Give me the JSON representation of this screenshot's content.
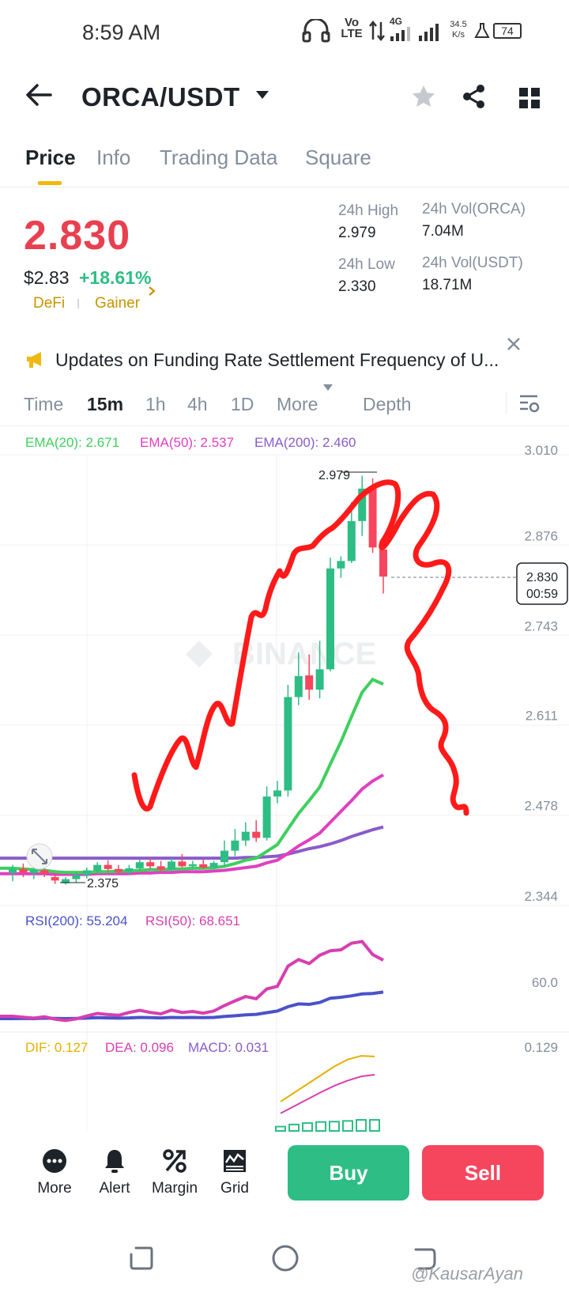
{
  "status_bar": {
    "time": "8:59 AM",
    "network": "Vo LTE",
    "net_type": "4G",
    "speed": "34.5",
    "speed_unit": "K/s",
    "battery": "74"
  },
  "header": {
    "pair": "ORCA/USDT"
  },
  "tabs": [
    {
      "label": "Price"
    },
    {
      "label": "Info"
    },
    {
      "label": "Trading Data"
    },
    {
      "label": "Square"
    }
  ],
  "price": {
    "last": "2.830",
    "usd": "$2.83",
    "change": "+18.61%",
    "tags": [
      "DeFi",
      "Gainer"
    ],
    "high_label": "24h High",
    "high_value": "2.979",
    "low_label": "24h Low",
    "low_value": "2.330",
    "vol_base_label": "24h Vol(ORCA)",
    "vol_base_value": "7.04M",
    "vol_quote_label": "24h Vol(USDT)",
    "vol_quote_value": "18.71M"
  },
  "announcement": {
    "text": "Updates on Funding Rate Settlement Frequency of U..."
  },
  "intervals": {
    "items": [
      "Time",
      "15m",
      "1h",
      "4h",
      "1D"
    ],
    "more": "More",
    "depth": "Depth"
  },
  "chart": {
    "ema20": "EMA(20): 2.671",
    "ema50": "EMA(50): 2.537",
    "ema200": "EMA(200): 2.460",
    "y_ticks": [
      "3.010",
      "2.876",
      "2.743",
      "2.611",
      "2.478",
      "2.344"
    ],
    "max_label": "2.979",
    "min_label": "2.375",
    "current_price": "2.830",
    "countdown": "00:59",
    "watermark": "BINANCE",
    "rsi200": "RSI(200): 55.204",
    "rsi50": "RSI(50): 68.651",
    "rsi_tick": "60.0",
    "dif": "DIF: 0.127",
    "dea": "DEA: 0.096",
    "macd": "MACD: 0.031",
    "macd_tick": "0.129",
    "colors": {
      "up": "#2ebd85",
      "down": "#f6465d",
      "ema20": "#3fcf5f",
      "ema50": "#e040c0",
      "ema200": "#8a5cc8"
    }
  },
  "chart_data": {
    "type": "candlestick",
    "ylim": [
      2.344,
      3.01
    ],
    "y_ticks": [
      3.01,
      2.876,
      2.743,
      2.611,
      2.478,
      2.344
    ],
    "candles": [
      {
        "o": 2.392,
        "h": 2.404,
        "l": 2.38,
        "c": 2.398
      },
      {
        "o": 2.398,
        "h": 2.406,
        "l": 2.386,
        "c": 2.393
      },
      {
        "o": 2.392,
        "h": 2.399,
        "l": 2.383,
        "c": 2.396
      },
      {
        "o": 2.396,
        "h": 2.404,
        "l": 2.386,
        "c": 2.391
      },
      {
        "o": 2.386,
        "h": 2.392,
        "l": 2.376,
        "c": 2.381
      },
      {
        "o": 2.377,
        "h": 2.386,
        "l": 2.375,
        "c": 2.383
      },
      {
        "o": 2.383,
        "h": 2.393,
        "l": 2.378,
        "c": 2.389
      },
      {
        "o": 2.389,
        "h": 2.4,
        "l": 2.384,
        "c": 2.396
      },
      {
        "o": 2.396,
        "h": 2.408,
        "l": 2.392,
        "c": 2.404
      },
      {
        "o": 2.404,
        "h": 2.411,
        "l": 2.394,
        "c": 2.398
      },
      {
        "o": 2.398,
        "h": 2.404,
        "l": 2.389,
        "c": 2.394
      },
      {
        "o": 2.394,
        "h": 2.404,
        "l": 2.389,
        "c": 2.399
      },
      {
        "o": 2.399,
        "h": 2.412,
        "l": 2.396,
        "c": 2.408
      },
      {
        "o": 2.408,
        "h": 2.415,
        "l": 2.398,
        "c": 2.402
      },
      {
        "o": 2.402,
        "h": 2.41,
        "l": 2.394,
        "c": 2.397
      },
      {
        "o": 2.397,
        "h": 2.414,
        "l": 2.394,
        "c": 2.409
      },
      {
        "o": 2.409,
        "h": 2.42,
        "l": 2.4,
        "c": 2.402
      },
      {
        "o": 2.402,
        "h": 2.41,
        "l": 2.397,
        "c": 2.405
      },
      {
        "o": 2.405,
        "h": 2.412,
        "l": 2.398,
        "c": 2.4
      },
      {
        "o": 2.4,
        "h": 2.41,
        "l": 2.396,
        "c": 2.407
      },
      {
        "o": 2.408,
        "h": 2.44,
        "l": 2.4,
        "c": 2.425
      },
      {
        "o": 2.425,
        "h": 2.457,
        "l": 2.417,
        "c": 2.44
      },
      {
        "o": 2.44,
        "h": 2.467,
        "l": 2.432,
        "c": 2.453
      },
      {
        "o": 2.453,
        "h": 2.47,
        "l": 2.438,
        "c": 2.444
      },
      {
        "o": 2.444,
        "h": 2.52,
        "l": 2.44,
        "c": 2.505
      },
      {
        "o": 2.505,
        "h": 2.528,
        "l": 2.495,
        "c": 2.514
      },
      {
        "o": 2.514,
        "h": 2.67,
        "l": 2.505,
        "c": 2.652
      },
      {
        "o": 2.652,
        "h": 2.718,
        "l": 2.64,
        "c": 2.683
      },
      {
        "o": 2.684,
        "h": 2.715,
        "l": 2.648,
        "c": 2.663
      },
      {
        "o": 2.663,
        "h": 2.735,
        "l": 2.65,
        "c": 2.693
      },
      {
        "o": 2.693,
        "h": 2.858,
        "l": 2.69,
        "c": 2.842
      },
      {
        "o": 2.842,
        "h": 2.86,
        "l": 2.828,
        "c": 2.853
      },
      {
        "o": 2.853,
        "h": 2.94,
        "l": 2.85,
        "c": 2.912
      },
      {
        "o": 2.912,
        "h": 2.979,
        "l": 2.89,
        "c": 2.96
      },
      {
        "o": 2.96,
        "h": 2.975,
        "l": 2.865,
        "c": 2.873
      },
      {
        "o": 2.87,
        "h": 2.875,
        "l": 2.805,
        "c": 2.83
      }
    ],
    "ema20": [
      2.399,
      2.398,
      2.397,
      2.396,
      2.394,
      2.393,
      2.393,
      2.393,
      2.394,
      2.394,
      2.395,
      2.395,
      2.396,
      2.397,
      2.397,
      2.398,
      2.398,
      2.399,
      2.399,
      2.4,
      2.402,
      2.406,
      2.411,
      2.414,
      2.424,
      2.434,
      2.457,
      2.48,
      2.499,
      2.519,
      2.553,
      2.586,
      2.623,
      2.659,
      2.678,
      2.671
    ],
    "ema50": [
      2.391,
      2.391,
      2.391,
      2.391,
      2.39,
      2.39,
      2.39,
      2.39,
      2.391,
      2.391,
      2.391,
      2.391,
      2.392,
      2.392,
      2.393,
      2.393,
      2.394,
      2.394,
      2.394,
      2.395,
      2.396,
      2.398,
      2.4,
      2.402,
      2.407,
      2.411,
      2.421,
      2.432,
      2.441,
      2.451,
      2.467,
      2.483,
      2.499,
      2.516,
      2.528,
      2.537
    ],
    "ema200": [
      2.414,
      2.414,
      2.414,
      2.414,
      2.414,
      2.414,
      2.414,
      2.414,
      2.414,
      2.414,
      2.414,
      2.414,
      2.414,
      2.414,
      2.414,
      2.414,
      2.414,
      2.414,
      2.414,
      2.414,
      2.414,
      2.414,
      2.415,
      2.415,
      2.416,
      2.417,
      2.42,
      2.424,
      2.428,
      2.431,
      2.435,
      2.44,
      2.446,
      2.451,
      2.456,
      2.46
    ],
    "rsi": {
      "rsi200": [
        44.0,
        44.1,
        44.0,
        44.2,
        44.1,
        44.0,
        44.1,
        44.2,
        44.4,
        44.3,
        44.2,
        44.3,
        44.5,
        44.4,
        44.3,
        44.5,
        44.4,
        44.5,
        44.4,
        44.5,
        44.9,
        45.2,
        45.6,
        45.8,
        46.5,
        47.2,
        49.0,
        50.2,
        50.0,
        50.8,
        52.6,
        53.0,
        53.6,
        54.4,
        54.6,
        55.2
      ],
      "rsi50": [
        45.0,
        44.6,
        44.2,
        44.8,
        43.8,
        43.2,
        43.9,
        45.1,
        46.2,
        45.7,
        45.4,
        46.6,
        47.5,
        46.6,
        46.0,
        47.6,
        46.6,
        47.0,
        46.3,
        47.2,
        49.5,
        51.5,
        53.3,
        52.4,
        56.5,
        57.6,
        66.1,
        68.9,
        67.2,
        70.7,
        72.6,
        73.0,
        75.8,
        76.5,
        71.0,
        68.65
      ]
    },
    "macd": {
      "dif": [
        0.05,
        0.065,
        0.08,
        0.095,
        0.11,
        0.122,
        0.128,
        0.127
      ],
      "dea": [
        0.03,
        0.042,
        0.054,
        0.066,
        0.077,
        0.086,
        0.093,
        0.096
      ],
      "hist": [
        0.012,
        0.018,
        0.022,
        0.025,
        0.026,
        0.028,
        0.031,
        0.031
      ]
    }
  },
  "toolbar": {
    "more": "More",
    "alert": "Alert",
    "margin": "Margin",
    "grid": "Grid",
    "buy": "Buy",
    "sell": "Sell"
  },
  "watermark": "@KausarAyan"
}
